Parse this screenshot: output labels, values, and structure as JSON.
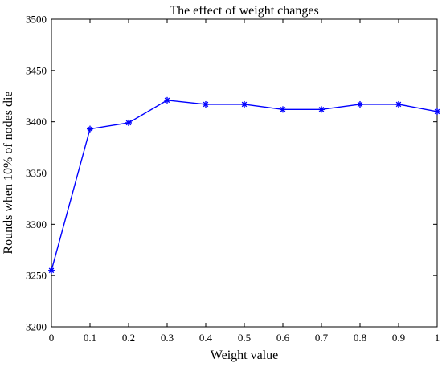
{
  "chart_data": {
    "type": "line",
    "title": "The effect of weight changes",
    "xlabel": "Weight value",
    "ylabel": "Rounds when 10% of nodes die",
    "xlim": [
      0,
      1
    ],
    "ylim": [
      3200,
      3500
    ],
    "xticks": [
      "0",
      "0.1",
      "0.2",
      "0.3",
      "0.4",
      "0.5",
      "0.6",
      "0.7",
      "0.8",
      "0.9",
      "1"
    ],
    "yticks": [
      "3200",
      "3250",
      "3300",
      "3350",
      "3400",
      "3450",
      "3500"
    ],
    "grid": false,
    "marker": "asterisk",
    "series": [
      {
        "color": "#0000ff",
        "x": [
          0,
          0.1,
          0.2,
          0.3,
          0.4,
          0.5,
          0.6,
          0.7,
          0.8,
          0.9,
          1.0
        ],
        "y": [
          3255,
          3393,
          3399,
          3421,
          3417,
          3417,
          3412,
          3412,
          3417,
          3417,
          3410
        ]
      }
    ]
  }
}
